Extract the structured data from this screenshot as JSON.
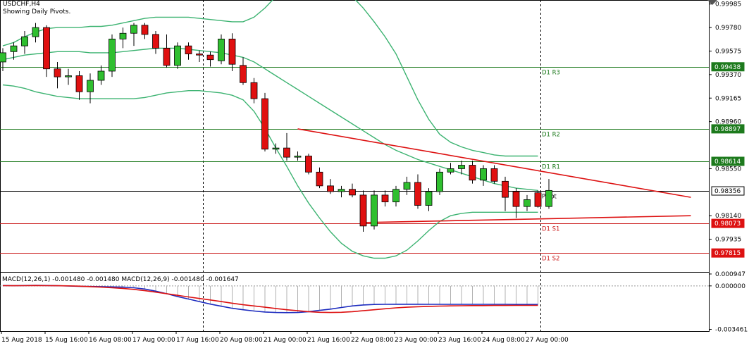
{
  "header": {
    "symbol_label": "USDCHF,H4",
    "indicator_label": "Showing Daily Pivots."
  },
  "macd": {
    "label": "MACD(12,26,1) -0.001480 -0.001480 MACD(12,26,9) -0.001480 -0.001647",
    "ticks": [
      {
        "label": "0.000947",
        "value": 0.000947
      },
      {
        "label": "0.000000",
        "value": 0.0
      },
      {
        "label": "-0.003461",
        "value": -0.003461
      }
    ],
    "signal": [
      2e-05,
      1e-05,
      2e-05,
      3e-05,
      2e-05,
      1e-05,
      0.0,
      -2e-05,
      -6e-05,
      -0.0001,
      -0.00015,
      -0.0002,
      -0.00028,
      -0.00038,
      -0.0005,
      -0.00062,
      -0.00075,
      -0.00088,
      -0.001,
      -0.00112,
      -0.00125,
      -0.00138,
      -0.0015,
      -0.0016,
      -0.0017,
      -0.0018,
      -0.0019,
      -0.00198,
      -0.00205,
      -0.0021,
      -0.00212,
      -0.0021,
      -0.00205,
      -0.00198,
      -0.0019,
      -0.00182,
      -0.00175,
      -0.0017,
      -0.00166,
      -0.00163,
      -0.00161,
      -0.00159,
      -0.00158,
      -0.00157,
      -0.00157,
      -0.00156,
      -0.00156,
      -0.00155,
      -0.00155,
      -0.00155,
      -0.00155,
      -0.00155,
      -0.00156,
      -0.00157,
      -0.00158,
      -0.00159,
      -0.0016,
      -0.00161,
      -0.00162,
      -0.00163,
      -0.00164,
      -0.00165,
      -0.00165,
      -0.00165,
      -0.00165
    ]
  },
  "chart_data": {
    "type": "candlestick",
    "symbol": "USDCHF",
    "timeframe": "H4",
    "x_tick_labels": [
      {
        "label": "15 Aug 2018",
        "index": 0
      },
      {
        "label": "15 Aug 16:00",
        "index": 4
      },
      {
        "label": "16 Aug 08:00",
        "index": 8
      },
      {
        "label": "17 Aug 00:00",
        "index": 12
      },
      {
        "label": "17 Aug 16:00",
        "index": 16
      },
      {
        "label": "20 Aug 08:00",
        "index": 20
      },
      {
        "label": "21 Aug 00:00",
        "index": 24
      },
      {
        "label": "21 Aug 16:00",
        "index": 28
      },
      {
        "label": "22 Aug 08:00",
        "index": 32
      },
      {
        "label": "23 Aug 00:00",
        "index": 36
      },
      {
        "label": "23 Aug 16:00",
        "index": 40
      },
      {
        "label": "24 Aug 08:00",
        "index": 44
      },
      {
        "label": "27 Aug 00:00",
        "index": 48
      }
    ],
    "y_ticks": [
      "0.99985",
      "0.99780",
      "0.99575",
      "0.99370",
      "0.99165",
      "0.98960",
      "0.98550",
      "0.98140",
      "0.97935"
    ],
    "y_range": [
      0.9765,
      1.0002
    ],
    "price_labels": [
      {
        "label": "0.99438",
        "value": 0.99438,
        "kind": "level"
      },
      {
        "label": "0.98897",
        "value": 0.98897,
        "kind": "level"
      },
      {
        "label": "0.98614",
        "value": 0.98614,
        "kind": "level"
      },
      {
        "label": "0.98356",
        "value": 0.98356,
        "kind": "current"
      },
      {
        "label": "0.98073",
        "value": 0.98073,
        "kind": "support"
      },
      {
        "label": "0.97815",
        "value": 0.97815,
        "kind": "support"
      }
    ],
    "pivots": [
      {
        "label": "D1 R3",
        "value": 0.99438,
        "color": "#1d7a1d"
      },
      {
        "label": "D1 R2",
        "value": 0.98897,
        "color": "#1d7a1d"
      },
      {
        "label": "D1 R1",
        "value": 0.98614,
        "color": "#1d7a1d"
      },
      {
        "label": "Pivot",
        "value": 0.98356,
        "color": "#000000"
      },
      {
        "label": "D1 S1",
        "value": 0.98073,
        "color": "#cc2222"
      },
      {
        "label": "D1 S2",
        "value": 0.97815,
        "color": "#cc2222"
      }
    ],
    "candles": [
      [
        0.9948,
        0.996,
        0.994,
        0.9956
      ],
      [
        0.9957,
        0.9965,
        0.995,
        0.9962
      ],
      [
        0.9962,
        0.9975,
        0.9955,
        0.997
      ],
      [
        0.997,
        0.9982,
        0.9965,
        0.9978
      ],
      [
        0.9978,
        0.998,
        0.9935,
        0.9942
      ],
      [
        0.9942,
        0.9948,
        0.9925,
        0.9935
      ],
      [
        0.9935,
        0.9942,
        0.9928,
        0.9936
      ],
      [
        0.9936,
        0.994,
        0.9915,
        0.9922
      ],
      [
        0.9922,
        0.9938,
        0.9912,
        0.9932
      ],
      [
        0.9932,
        0.9945,
        0.9928,
        0.994
      ],
      [
        0.994,
        0.9972,
        0.9935,
        0.9968
      ],
      [
        0.9968,
        0.9978,
        0.996,
        0.9973
      ],
      [
        0.9973,
        0.9982,
        0.9962,
        0.998
      ],
      [
        0.998,
        0.9982,
        0.9968,
        0.9972
      ],
      [
        0.9972,
        0.9975,
        0.9955,
        0.996
      ],
      [
        0.996,
        0.9972,
        0.9943,
        0.9945
      ],
      [
        0.9945,
        0.9965,
        0.9942,
        0.9962
      ],
      [
        0.9962,
        0.9965,
        0.995,
        0.9955
      ],
      [
        0.9955,
        0.9958,
        0.9948,
        0.9954
      ],
      [
        0.9954,
        0.9957,
        0.9944,
        0.995
      ],
      [
        0.9949,
        0.9972,
        0.9946,
        0.9968
      ],
      [
        0.9968,
        0.9973,
        0.994,
        0.9946
      ],
      [
        0.9945,
        0.9952,
        0.9928,
        0.993
      ],
      [
        0.993,
        0.9934,
        0.9912,
        0.9916
      ],
      [
        0.9916,
        0.9921,
        0.987,
        0.9872
      ],
      [
        0.9872,
        0.9877,
        0.9868,
        0.9873
      ],
      [
        0.9873,
        0.9886,
        0.9862,
        0.9865
      ],
      [
        0.9865,
        0.987,
        0.9862,
        0.9866
      ],
      [
        0.9866,
        0.9868,
        0.985,
        0.9852
      ],
      [
        0.9852,
        0.9856,
        0.9838,
        0.984
      ],
      [
        0.984,
        0.9846,
        0.9833,
        0.9835
      ],
      [
        0.9835,
        0.984,
        0.983,
        0.9837
      ],
      [
        0.9837,
        0.9842,
        0.983,
        0.9832
      ],
      [
        0.9832,
        0.9836,
        0.98,
        0.9805
      ],
      [
        0.9805,
        0.9836,
        0.9802,
        0.9832
      ],
      [
        0.9832,
        0.9836,
        0.9822,
        0.9826
      ],
      [
        0.9826,
        0.984,
        0.9822,
        0.9837
      ],
      [
        0.9837,
        0.9848,
        0.9832,
        0.9843
      ],
      [
        0.9843,
        0.985,
        0.982,
        0.9823
      ],
      [
        0.9823,
        0.9838,
        0.9818,
        0.9835
      ],
      [
        0.9835,
        0.9855,
        0.9832,
        0.9852
      ],
      [
        0.9852,
        0.986,
        0.985,
        0.9855
      ],
      [
        0.9855,
        0.9862,
        0.985,
        0.9858
      ],
      [
        0.9858,
        0.9862,
        0.9842,
        0.9845
      ],
      [
        0.9845,
        0.9858,
        0.984,
        0.9855
      ],
      [
        0.9855,
        0.9858,
        0.9842,
        0.9844
      ],
      [
        0.9844,
        0.9848,
        0.9818,
        0.983
      ],
      [
        0.9835,
        0.9838,
        0.9812,
        0.9822
      ],
      [
        0.9822,
        0.9832,
        0.9818,
        0.9828
      ],
      [
        0.9834,
        0.9836,
        0.9821,
        0.9822
      ],
      [
        0.9822,
        0.9846,
        0.982,
        0.9836
      ]
    ],
    "bands": {
      "upper": [
        0.9962,
        0.9965,
        0.997,
        0.9974,
        0.9977,
        0.9978,
        0.9978,
        0.9978,
        0.9979,
        0.9979,
        0.998,
        0.9982,
        0.9984,
        0.9986,
        0.9987,
        0.9987,
        0.9987,
        0.9987,
        0.9986,
        0.9985,
        0.9984,
        0.9983,
        0.9983,
        0.9987,
        0.9995,
        1.0005,
        1.0012,
        1.0017,
        1.0019,
        1.0019,
        1.0017,
        1.0012,
        1.0005,
        0.9995,
        0.9983,
        0.997,
        0.9955,
        0.9935,
        0.9915,
        0.9898,
        0.9885,
        0.9878,
        0.9874,
        0.9871,
        0.9869,
        0.9867,
        0.9866,
        0.9866,
        0.9866,
        0.9866
      ],
      "middle": [
        0.995,
        0.9952,
        0.9954,
        0.9955,
        0.9956,
        0.9957,
        0.9957,
        0.9957,
        0.9956,
        0.9956,
        0.9956,
        0.9957,
        0.9958,
        0.9959,
        0.996,
        0.996,
        0.996,
        0.9959,
        0.9958,
        0.9957,
        0.9956,
        0.9954,
        0.9952,
        0.9948,
        0.9942,
        0.9936,
        0.993,
        0.9924,
        0.9918,
        0.9912,
        0.9906,
        0.99,
        0.9894,
        0.9888,
        0.9882,
        0.9876,
        0.9871,
        0.9867,
        0.9863,
        0.986,
        0.9857,
        0.9854,
        0.9851,
        0.9848,
        0.9845,
        0.9842,
        0.984,
        0.9838,
        0.9837,
        0.9836
      ],
      "lower": [
        0.9928,
        0.9927,
        0.9925,
        0.9922,
        0.992,
        0.9918,
        0.9917,
        0.9916,
        0.9916,
        0.9916,
        0.9916,
        0.9916,
        0.9916,
        0.9917,
        0.9919,
        0.9921,
        0.9922,
        0.9923,
        0.9923,
        0.9922,
        0.9921,
        0.9919,
        0.9915,
        0.9905,
        0.989,
        0.9873,
        0.9857,
        0.984,
        0.9825,
        0.9812,
        0.98,
        0.979,
        0.9783,
        0.9779,
        0.9777,
        0.9777,
        0.9779,
        0.9784,
        0.9792,
        0.9801,
        0.9809,
        0.9814,
        0.9816,
        0.9817,
        0.9817,
        0.9817,
        0.9817,
        0.9817,
        0.9817,
        0.9817
      ]
    },
    "trendlines": [
      {
        "from": {
          "index": 27,
          "value": 0.98897
        },
        "to": {
          "index": 63,
          "value": 0.983
        }
      },
      {
        "from": {
          "index": 33,
          "value": 0.9808
        },
        "to": {
          "index": 63,
          "value": 0.9814
        }
      }
    ],
    "macd_histogram": [
      3e-05,
      2e-05,
      3e-05,
      4e-05,
      3e-05,
      1e-05,
      -1e-05,
      -3e-05,
      -5e-05,
      -6e-05,
      -8e-05,
      -0.0001,
      -0.00015,
      -0.00025,
      -0.00042,
      -0.00062,
      -0.00085,
      -0.00105,
      -0.00125,
      -0.00145,
      -0.00162,
      -0.00178,
      -0.0019,
      -0.002,
      -0.00208,
      -0.00212,
      -0.00213,
      -0.00212,
      -0.00205,
      -0.00195,
      -0.00185,
      -0.00172,
      -0.0016,
      -0.00152,
      -0.00148,
      -0.00147,
      -0.00146,
      -0.00146,
      -0.00146,
      -0.00147,
      -0.00147,
      -0.00147,
      -0.00147,
      -0.00147,
      -0.00147,
      -0.00147,
      -0.00147,
      -0.00148,
      -0.00148,
      -0.00148
    ]
  }
}
